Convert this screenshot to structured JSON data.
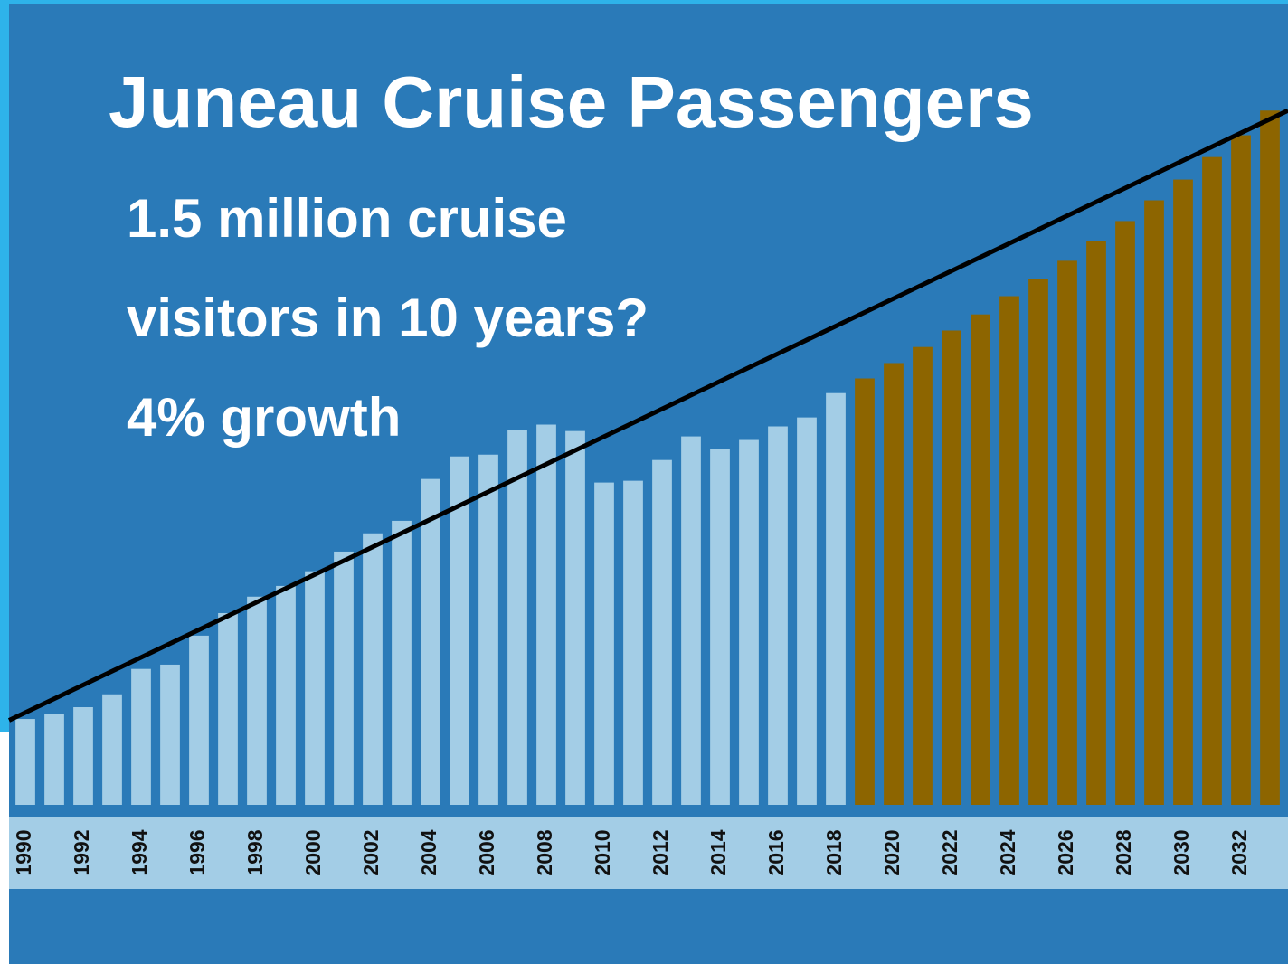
{
  "chart_data": {
    "type": "bar",
    "title": "Juneau Cruise Passengers",
    "subtitle": [
      "1.5 million cruise",
      "visitors in 10 years?",
      "4% growth"
    ],
    "categories": [
      "1990",
      null,
      "1992",
      null,
      "1994",
      null,
      "1996",
      null,
      "1998",
      null,
      "2000",
      null,
      "2002",
      null,
      "2004",
      null,
      "2006",
      null,
      "2008",
      null,
      "2010",
      null,
      "2012",
      null,
      "2014",
      null,
      "2016",
      null,
      "2018",
      null,
      "2020",
      null,
      "2022",
      null,
      "2024",
      null,
      "2026",
      null,
      "2028",
      null,
      "2030",
      null,
      "2032",
      null
    ],
    "values": [
      240000,
      253000,
      273000,
      309000,
      380000,
      392000,
      473000,
      536000,
      582000,
      612000,
      653000,
      708000,
      759000,
      794000,
      911000,
      974000,
      979000,
      1047000,
      1063000,
      1045000,
      901000,
      906000,
      964000,
      1030000,
      994000,
      1020000,
      1058000,
      1083000,
      1151000,
      1192000,
      1235000,
      1280000,
      1326000,
      1371000,
      1422000,
      1470000,
      1521000,
      1576000,
      1632000,
      1690000,
      1748000,
      1811000,
      1872000,
      1941000
    ],
    "colors": [
      "#a3cde6",
      "#a3cde6",
      "#a3cde6",
      "#a3cde6",
      "#a3cde6",
      "#a3cde6",
      "#a3cde6",
      "#a3cde6",
      "#a3cde6",
      "#a3cde6",
      "#a3cde6",
      "#a3cde6",
      "#a3cde6",
      "#a3cde6",
      "#a3cde6",
      "#a3cde6",
      "#a3cde6",
      "#a3cde6",
      "#a3cde6",
      "#a3cde6",
      "#a3cde6",
      "#a3cde6",
      "#a3cde6",
      "#a3cde6",
      "#a3cde6",
      "#a3cde6",
      "#a3cde6",
      "#a3cde6",
      "#a3cde6",
      "#8d6500",
      "#8d6500",
      "#8d6500",
      "#8d6500",
      "#8d6500",
      "#8d6500",
      "#8d6500",
      "#8d6500",
      "#8d6500",
      "#8d6500",
      "#8d6500",
      "#8d6500",
      "#8d6500",
      "#8d6500",
      "#8d6500"
    ],
    "trend": {
      "values": [
        258000,
        1917000
      ],
      "color": "#000000"
    },
    "ylim": [
      0,
      2250000
    ]
  }
}
